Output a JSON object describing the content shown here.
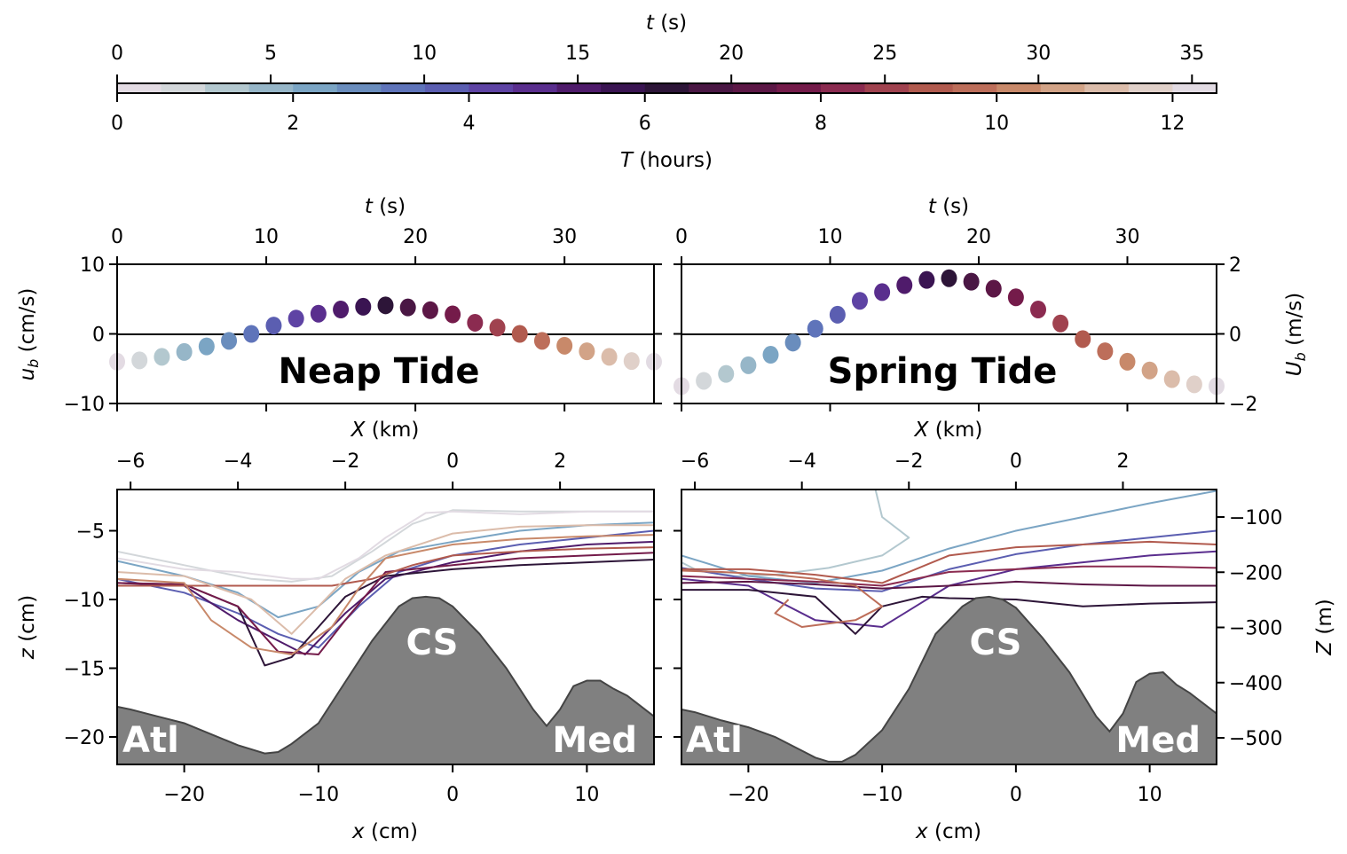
{
  "colorbar": {
    "top_label_var": "t",
    "top_label_unit": " (s)",
    "top_ticks": [
      0,
      5,
      10,
      15,
      20,
      25,
      30,
      35
    ],
    "bottom_label_var": "T",
    "bottom_label_unit": " (hours)",
    "bottom_ticks": [
      0,
      2,
      4,
      6,
      8,
      10,
      12
    ],
    "range_hours": [
      0,
      12.5
    ],
    "range_seconds": [
      0,
      35.8
    ],
    "colors": [
      "#e3dbe3",
      "#d3d7da",
      "#b3c8cf",
      "#96b6c8",
      "#7ba5c4",
      "#6a8dbd",
      "#5f74ba",
      "#5b5eb1",
      "#5e43a4",
      "#5a2e8e",
      "#4f1b6b",
      "#3a1452",
      "#2d1538",
      "#4a1744",
      "#5c1746",
      "#741b4a",
      "#8b2b50",
      "#a0424f",
      "#b15a4e",
      "#bd6e5a",
      "#c8896a",
      "#d2a387",
      "#dbbcaa",
      "#e0d0c9",
      "#e2dbe3"
    ]
  },
  "chart_data": [
    {
      "type": "scatter",
      "title": "Neap Tide",
      "xlabel_top_var": "t",
      "xlabel_top_unit": " (s)",
      "xlabel_bottom_var": "X",
      "xlabel_bottom_unit": " (km)",
      "ylabel_var": "u",
      "ylabel_sub": "b",
      "ylabel_unit": " (cm/s)",
      "xlim": [
        0,
        36
      ],
      "ylim": [
        -10,
        10
      ],
      "xticks_top": [
        0,
        10,
        20,
        30
      ],
      "yticks": [
        10,
        0,
        -10
      ],
      "x": [
        0,
        1.5,
        3,
        4.5,
        6,
        7.5,
        9,
        10.5,
        12,
        13.5,
        15,
        16.5,
        18,
        19.5,
        21,
        22.5,
        24,
        25.5,
        27,
        28.5,
        30,
        31.5,
        33,
        34.5,
        36
      ],
      "y": [
        -4,
        -3.8,
        -3.3,
        -2.6,
        -1.8,
        -1,
        0,
        1.2,
        2.2,
        2.9,
        3.5,
        3.9,
        4.1,
        3.8,
        3.4,
        2.8,
        1.6,
        0.9,
        0,
        -1,
        -1.7,
        -2.5,
        -3.3,
        -3.9,
        -4
      ],
      "zero_line": true
    },
    {
      "type": "scatter",
      "title": "Spring Tide",
      "xlabel_top_var": "t",
      "xlabel_top_unit": " (s)",
      "xlabel_bottom_var": "X",
      "xlabel_bottom_unit": " (km)",
      "ylabel_var": "U",
      "ylabel_sub": "b",
      "ylabel_unit": " (m/s)",
      "xlim": [
        0,
        36
      ],
      "ylim": [
        -2,
        2
      ],
      "xticks_top": [
        0,
        10,
        20,
        30
      ],
      "yticks": [
        2,
        0,
        -2
      ],
      "x": [
        0,
        1.5,
        3,
        4.5,
        6,
        7.5,
        9,
        10.5,
        12,
        13.5,
        15,
        16.5,
        18,
        19.5,
        21,
        22.5,
        24,
        25.5,
        27,
        28.5,
        30,
        31.5,
        33,
        34.5,
        36
      ],
      "y": [
        -1.5,
        -1.35,
        -1.15,
        -0.9,
        -0.6,
        -0.25,
        0.15,
        0.55,
        0.95,
        1.2,
        1.4,
        1.55,
        1.6,
        1.5,
        1.3,
        1.05,
        0.7,
        0.3,
        -0.15,
        -0.5,
        -0.8,
        -1.05,
        -1.3,
        -1.45,
        -1.5
      ],
      "zero_line": true
    },
    {
      "type": "line",
      "title": "",
      "xlabel_var": "x",
      "xlabel_unit": " (cm)",
      "xlabel_top_var": "X",
      "xlabel_top_unit": " (km)",
      "ylabel_var": "z",
      "ylabel_unit": " (cm)",
      "xlim": [
        -25,
        15
      ],
      "ylim": [
        -22,
        -2
      ],
      "xticks": [
        -20,
        -10,
        0,
        10
      ],
      "xticks_top": [
        -6,
        -4,
        -2,
        0,
        2
      ],
      "yticks": [
        -5,
        -10,
        -15,
        -20
      ],
      "annotations": [
        "Atl",
        "CS",
        "Med"
      ],
      "bathymetry": {
        "x": [
          -25,
          -24,
          -22,
          -20,
          -18,
          -16,
          -14,
          -13,
          -12,
          -10,
          -8,
          -6,
          -4,
          -3,
          -2,
          -1,
          0,
          2,
          4,
          6,
          7,
          8,
          9,
          10,
          11,
          12,
          13,
          15
        ],
        "z": [
          -17.8,
          -18.0,
          -18.5,
          -19.0,
          -19.8,
          -20.6,
          -21.2,
          -21.1,
          -20.5,
          -19.0,
          -16.0,
          -13.0,
          -10.5,
          -9.9,
          -9.8,
          -9.9,
          -10.5,
          -12.5,
          -15.0,
          -18.0,
          -19.2,
          -18.0,
          -16.3,
          -15.9,
          -15.9,
          -16.5,
          -17.0,
          -18.5
        ]
      },
      "series": [
        {
          "color_index": 1,
          "x": [
            -25,
            -20,
            -15,
            -12,
            -9,
            -6,
            -3,
            0,
            5,
            10,
            15
          ],
          "z": [
            -6.5,
            -7.5,
            -8.5,
            -8.7,
            -8.3,
            -6.5,
            -4.5,
            -3.5,
            -3.6,
            -3.6,
            -3.6
          ]
        },
        {
          "color_index": 4,
          "x": [
            -25,
            -20,
            -16,
            -13,
            -10,
            -7,
            -4,
            0,
            5,
            10,
            15
          ],
          "z": [
            -7.2,
            -8.3,
            -9.5,
            -11.3,
            -10.5,
            -8.0,
            -6.5,
            -5.8,
            -5.0,
            -4.6,
            -4.4
          ]
        },
        {
          "color_index": 7,
          "x": [
            -25,
            -20,
            -16,
            -13,
            -10,
            -7,
            -4,
            0,
            5,
            10,
            15
          ],
          "z": [
            -8.5,
            -9.5,
            -11.0,
            -12.5,
            -13.5,
            -10.5,
            -8.0,
            -6.8,
            -6.0,
            -5.5,
            -5.0
          ]
        },
        {
          "color_index": 10,
          "x": [
            -25,
            -20,
            -16,
            -13,
            -11,
            -8,
            -5,
            0,
            5,
            10,
            15
          ],
          "z": [
            -8.8,
            -9.0,
            -11.5,
            -13.0,
            -14.0,
            -11.0,
            -8.5,
            -7.3,
            -6.5,
            -6.0,
            -5.8
          ]
        },
        {
          "color_index": 12,
          "x": [
            -25,
            -20,
            -16,
            -14,
            -12,
            -10,
            -8,
            -5,
            0,
            5,
            10,
            15
          ],
          "z": [
            -8.8,
            -8.9,
            -10.5,
            -14.8,
            -14.2,
            -12.0,
            -9.8,
            -8.3,
            -7.8,
            -7.5,
            -7.3,
            -7.1
          ]
        },
        {
          "color_index": 15,
          "x": [
            -25,
            -20,
            -16,
            -13,
            -10,
            -8,
            -5,
            0,
            5,
            10,
            15
          ],
          "z": [
            -8.8,
            -8.9,
            -10.5,
            -13.8,
            -14.0,
            -11.5,
            -8.0,
            -7.5,
            -7.0,
            -6.8,
            -6.6
          ]
        },
        {
          "color_index": 18,
          "x": [
            -25,
            -20,
            -15,
            -12,
            -9,
            -6,
            -3,
            0,
            5,
            10,
            15
          ],
          "z": [
            -9.0,
            -9.0,
            -9.0,
            -9.0,
            -9.0,
            -8.5,
            -7.5,
            -6.8,
            -6.5,
            -6.3,
            -6.2
          ]
        },
        {
          "color_index": 20,
          "x": [
            -25,
            -20,
            -18,
            -15,
            -12,
            -9,
            -7,
            -5,
            0,
            5,
            10,
            15
          ],
          "z": [
            -8.5,
            -8.8,
            -11.5,
            -13.5,
            -14.0,
            -12.0,
            -9.2,
            -7.0,
            -6.0,
            -5.6,
            -5.4,
            -5.3
          ]
        },
        {
          "color_index": 22,
          "x": [
            -25,
            -20,
            -15,
            -12,
            -10,
            -8,
            -5,
            0,
            5,
            10,
            15
          ],
          "z": [
            -8.0,
            -8.3,
            -10.0,
            -12.5,
            -10.5,
            -8.5,
            -6.8,
            -5.2,
            -4.7,
            -4.6,
            -4.6
          ]
        },
        {
          "color_index": 24,
          "x": [
            -25,
            -20,
            -16,
            -12,
            -10,
            -7,
            -5,
            -2,
            0,
            5,
            10,
            15
          ],
          "z": [
            -7.0,
            -7.8,
            -8.0,
            -8.5,
            -8.5,
            -7.0,
            -5.5,
            -3.7,
            -3.6,
            -3.8,
            -3.6,
            -3.6
          ]
        }
      ]
    },
    {
      "type": "line",
      "title": "",
      "xlabel_var": "x",
      "xlabel_unit": " (cm)",
      "xlabel_top_var": "X",
      "xlabel_top_unit": " (km)",
      "ylabel_right_var": "Z",
      "ylabel_right_unit": " (m)",
      "xlim": [
        -25,
        15
      ],
      "ylim": [
        -22,
        -2
      ],
      "xticks": [
        -20,
        -10,
        0,
        10
      ],
      "xticks_top": [
        -6,
        -4,
        -2,
        0,
        2
      ],
      "yticks_right": [
        -100,
        -200,
        -300,
        -400,
        -500
      ],
      "annotations": [
        "Atl",
        "CS",
        "Med"
      ],
      "bathymetry": {
        "x": [
          -25,
          -24,
          -22,
          -20,
          -18,
          -16,
          -15,
          -14,
          -13,
          -12,
          -10,
          -8,
          -6,
          -4,
          -3,
          -2,
          -1,
          0,
          2,
          4,
          6,
          7,
          8,
          9,
          10,
          11,
          12,
          13,
          15
        ],
        "z": [
          -18.0,
          -18.2,
          -18.8,
          -19.3,
          -20.0,
          -21.0,
          -21.5,
          -21.8,
          -21.8,
          -21.3,
          -19.5,
          -16.5,
          -12.5,
          -10.5,
          -9.9,
          -9.8,
          -10.0,
          -10.6,
          -12.8,
          -15.3,
          -18.5,
          -19.6,
          -18.3,
          -16.0,
          -15.4,
          -15.3,
          -16.2,
          -16.8,
          -18.3
        ]
      },
      "series": [
        {
          "color_index": 2,
          "x": [
            -10.5,
            -10,
            -8,
            -10,
            -14,
            -18,
            -21,
            -24,
            -25
          ],
          "z": [
            -2,
            -4,
            -5.5,
            -6.8,
            -7.7,
            -8.2,
            -8.3,
            -7.8,
            -7.3
          ]
        },
        {
          "color_index": 4,
          "x": [
            -25,
            -20,
            -15,
            -10,
            -5,
            0,
            5,
            10,
            15
          ],
          "z": [
            -6.8,
            -8.3,
            -8.8,
            -7.9,
            -6.3,
            -5.0,
            -4.0,
            -3.0,
            -2.1
          ]
        },
        {
          "color_index": 7,
          "x": [
            -25,
            -20,
            -15,
            -10,
            -5,
            0,
            5,
            10,
            15
          ],
          "z": [
            -7.7,
            -8.5,
            -9.2,
            -9.4,
            -7.8,
            -6.7,
            -6.0,
            -5.5,
            -5.0
          ]
        },
        {
          "color_index": 9,
          "x": [
            -25,
            -20,
            -15,
            -10,
            -5,
            0,
            5,
            10,
            15
          ],
          "z": [
            -8.5,
            -9.0,
            -11.5,
            -12.0,
            -9.0,
            -7.8,
            -7.3,
            -6.8,
            -6.5
          ]
        },
        {
          "color_index": 12,
          "x": [
            -25,
            -20,
            -15,
            -12,
            -10,
            -7,
            -5,
            0,
            5,
            10,
            15
          ],
          "z": [
            -9.3,
            -9.3,
            -9.8,
            -12.5,
            -10.5,
            -9.8,
            -9.9,
            -10.0,
            -10.5,
            -10.3,
            -10.2
          ]
        },
        {
          "color_index": 14,
          "x": [
            -25,
            -20,
            -15,
            -10,
            -5,
            0,
            5,
            10,
            15
          ],
          "z": [
            -8.8,
            -8.7,
            -8.9,
            -9.2,
            -9.0,
            -8.7,
            -8.9,
            -9.0,
            -9.0
          ]
        },
        {
          "color_index": 16,
          "x": [
            -25,
            -20,
            -15,
            -10,
            -5,
            0,
            5,
            10,
            15
          ],
          "z": [
            -8.3,
            -8.5,
            -8.7,
            -9.0,
            -8.0,
            -7.8,
            -7.6,
            -7.6,
            -7.7
          ]
        },
        {
          "color_index": 18,
          "x": [
            -25,
            -20,
            -15,
            -10,
            -5,
            0,
            5,
            10,
            15
          ],
          "z": [
            -7.8,
            -7.8,
            -8.2,
            -8.8,
            -6.8,
            -6.2,
            -6.0,
            -5.8,
            -6.0
          ]
        },
        {
          "color_index": 19,
          "x": [
            -25,
            -22,
            -18,
            -15,
            -12,
            -10,
            -12,
            -16,
            -18,
            -17
          ],
          "z": [
            -7.9,
            -8.0,
            -8.2,
            -8.5,
            -9.0,
            -10.5,
            -11.5,
            -12.0,
            -11.0,
            -10.0
          ]
        }
      ]
    }
  ]
}
